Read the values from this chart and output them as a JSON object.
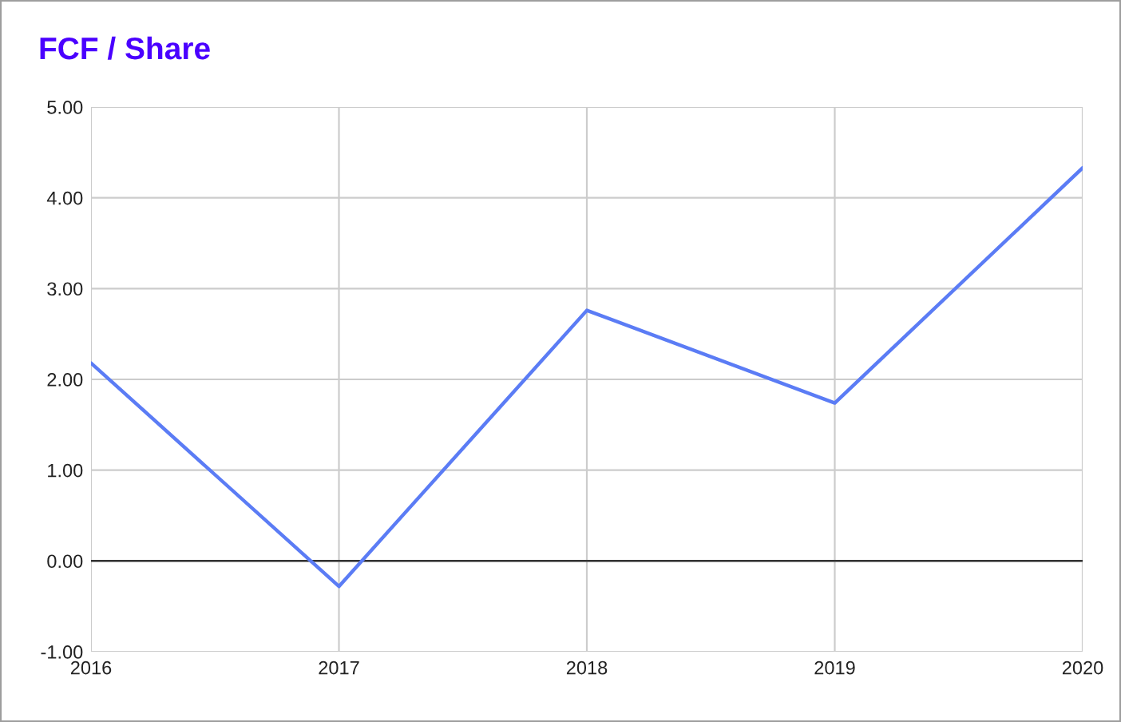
{
  "chart_data": {
    "type": "line",
    "title": "FCF / Share",
    "categories": [
      "2016",
      "2017",
      "2018",
      "2019",
      "2020"
    ],
    "series": [
      {
        "color": "#5b7cf5",
        "values": [
          2.18,
          -0.28,
          2.76,
          1.74,
          4.33
        ]
      }
    ],
    "ylim": [
      -1,
      5
    ],
    "yticks": [
      {
        "value": -1,
        "label": "-1.00"
      },
      {
        "value": 0,
        "label": "0.00"
      },
      {
        "value": 1,
        "label": "1.00"
      },
      {
        "value": 2,
        "label": "2.00"
      },
      {
        "value": 3,
        "label": "3.00"
      },
      {
        "value": 4,
        "label": "4.00"
      },
      {
        "value": 5,
        "label": "5.00"
      }
    ],
    "ref_lines": [
      {
        "axis": "y",
        "value": 0,
        "color": "#333333"
      }
    ],
    "grid": true,
    "marker": "none",
    "line_style": "solid"
  }
}
